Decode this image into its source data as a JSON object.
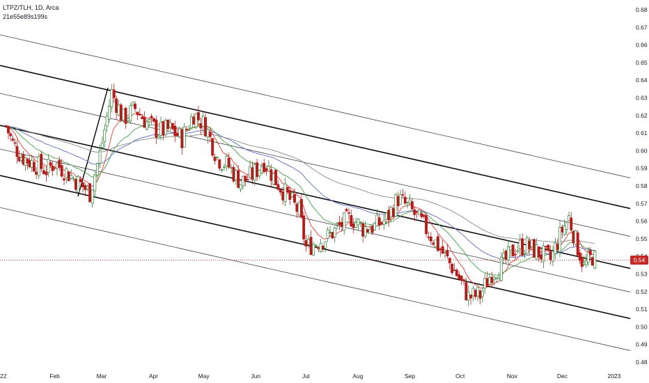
{
  "header": {
    "symbol_line": "LTPZ/TLH, 1D, Arca",
    "sub_line": "21e55e89s199s"
  },
  "price_badge": "0.54",
  "colors": {
    "up": "#2e7d32",
    "down": "#b71c1c",
    "ma_fast": "#e53935",
    "ma_mid": "#43a047",
    "ma_slow": "#5c6bc0",
    "ma_long": "#888888",
    "channel": "#000000",
    "badge": "#c62828"
  },
  "chart_data": {
    "type": "candlestick",
    "title": "",
    "ylim": [
      0.475,
      0.685
    ],
    "y_ticks": [
      "0.68",
      "0.67",
      "0.66",
      "0.65",
      "0.64",
      "0.63",
      "0.62",
      "0.61",
      "0.60",
      "0.59",
      "0.58",
      "0.57",
      "0.56",
      "0.55",
      "0.54",
      "0.53",
      "0.52",
      "0.51",
      "0.50",
      "0.49",
      "0.48"
    ],
    "x_labels": [
      "22",
      "Feb",
      "Mar",
      "Apr",
      "May",
      "Jun",
      "Jul",
      "Aug",
      "Sep",
      "Oct",
      "Nov",
      "Dec",
      "2023"
    ],
    "last_price": 0.54,
    "ohlc_close_path": [
      [
        "2022-01-03",
        0.614
      ],
      [
        "2022-01-07",
        0.604
      ],
      [
        "2022-01-12",
        0.597
      ],
      [
        "2022-01-17",
        0.594
      ],
      [
        "2022-01-21",
        0.592
      ],
      [
        "2022-01-27",
        0.589
      ],
      [
        "2022-02-01",
        0.593
      ],
      [
        "2022-02-08",
        0.588
      ],
      [
        "2022-02-15",
        0.582
      ],
      [
        "2022-02-22",
        0.576
      ],
      [
        "2022-02-28",
        0.598
      ],
      [
        "2022-03-07",
        0.633
      ],
      [
        "2022-03-14",
        0.618
      ],
      [
        "2022-03-21",
        0.624
      ],
      [
        "2022-03-28",
        0.616
      ],
      [
        "2022-04-04",
        0.611
      ],
      [
        "2022-04-11",
        0.612
      ],
      [
        "2022-04-18",
        0.607
      ],
      [
        "2022-04-25",
        0.621
      ],
      [
        "2022-05-02",
        0.614
      ],
      [
        "2022-05-09",
        0.596
      ],
      [
        "2022-05-16",
        0.591
      ],
      [
        "2022-05-23",
        0.582
      ],
      [
        "2022-05-30",
        0.586
      ],
      [
        "2022-06-06",
        0.594
      ],
      [
        "2022-06-13",
        0.583
      ],
      [
        "2022-06-20",
        0.574
      ],
      [
        "2022-06-27",
        0.565
      ],
      [
        "2022-07-01",
        0.545
      ],
      [
        "2022-07-07",
        0.548
      ],
      [
        "2022-07-14",
        0.551
      ],
      [
        "2022-07-21",
        0.557
      ],
      [
        "2022-07-28",
        0.562
      ],
      [
        "2022-08-04",
        0.556
      ],
      [
        "2022-08-11",
        0.557
      ],
      [
        "2022-08-18",
        0.561
      ],
      [
        "2022-08-25",
        0.573
      ],
      [
        "2022-09-01",
        0.567
      ],
      [
        "2022-09-08",
        0.559
      ],
      [
        "2022-09-15",
        0.55
      ],
      [
        "2022-09-22",
        0.54
      ],
      [
        "2022-09-29",
        0.53
      ],
      [
        "2022-10-06",
        0.517
      ],
      [
        "2022-10-13",
        0.518
      ],
      [
        "2022-10-20",
        0.531
      ],
      [
        "2022-10-27",
        0.536
      ],
      [
        "2022-11-03",
        0.545
      ],
      [
        "2022-11-10",
        0.546
      ],
      [
        "2022-11-17",
        0.542
      ],
      [
        "2022-11-24",
        0.538
      ],
      [
        "2022-12-01",
        0.555
      ],
      [
        "2022-12-05",
        0.562
      ],
      [
        "2022-12-09",
        0.549
      ],
      [
        "2022-12-14",
        0.534
      ],
      [
        "2022-12-19",
        0.54
      ],
      [
        "2022-12-22",
        0.537
      ]
    ]
  }
}
